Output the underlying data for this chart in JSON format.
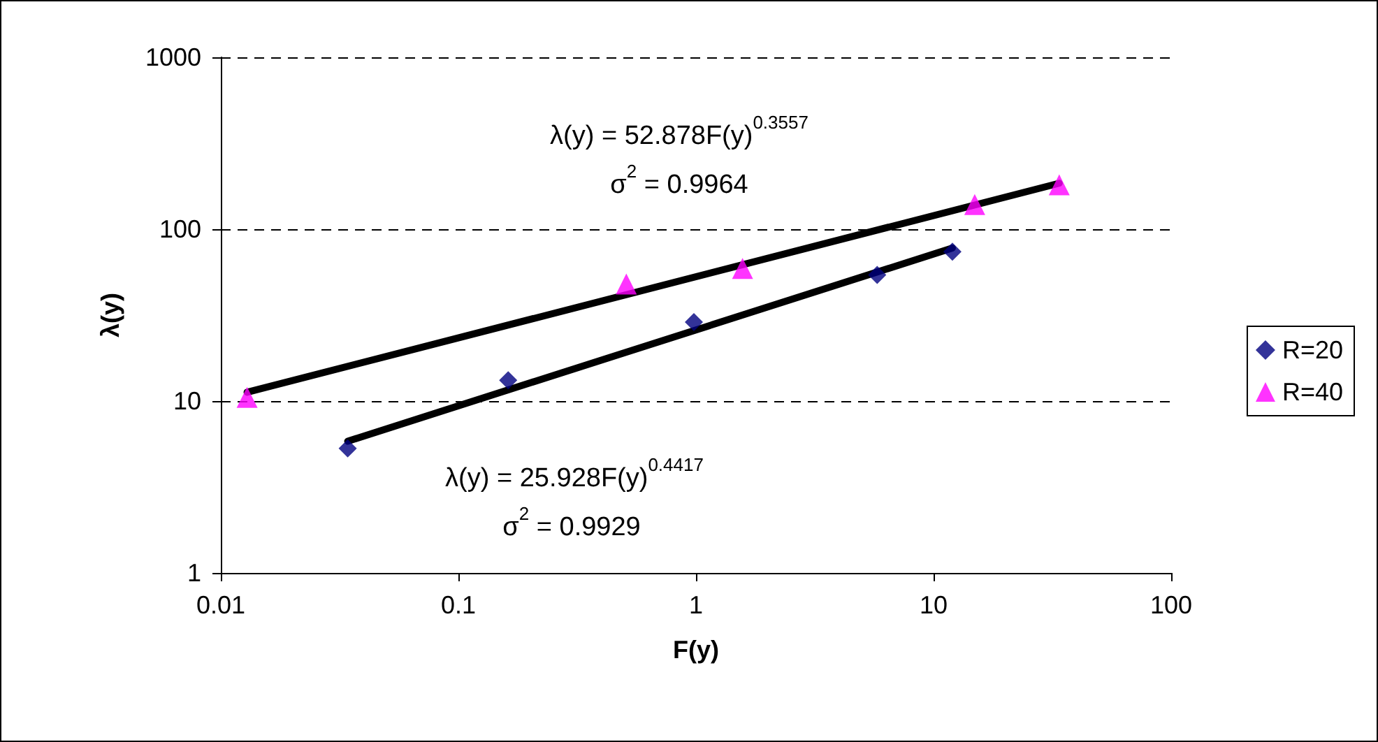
{
  "chart_data": {
    "type": "scatter",
    "xlabel": "F(y)",
    "ylabel": "λ(y)",
    "log": "xy",
    "xlim": [
      0.01,
      100
    ],
    "xticks": [
      0.01,
      0.1,
      1,
      10,
      100
    ],
    "ylim": [
      1,
      1000
    ],
    "yticks": [
      1,
      10,
      100,
      1000
    ],
    "grid": "y",
    "legend": "right",
    "series": [
      {
        "name": "R=20",
        "marker": "diamond",
        "color": "#000080",
        "x": [
          0.0342,
          0.162,
          0.98,
          5.79,
          12.0
        ],
        "values": [
          5.3,
          13.2,
          28.8,
          54.2,
          73.9
        ]
      },
      {
        "name": "R=40",
        "marker": "triangle",
        "color": "#ff00ff",
        "x": [
          0.0129,
          0.509,
          1.57,
          14.9,
          33.8
        ],
        "values": [
          10.5,
          48,
          59,
          139,
          181
        ]
      },
      {
        "type": "line",
        "marker": "none",
        "line_style": "solid",
        "color": "#000000",
        "x": [
          0.0129,
          33.8
        ],
        "values": [
          11.25,
          185
        ]
      },
      {
        "type": "line",
        "marker": "none",
        "line_style": "solid",
        "color": "#000000",
        "x": [
          0.0342,
          12.0
        ],
        "values": [
          5.84,
          77.7
        ]
      }
    ],
    "annotations": [
      "λ(y) = 52.878F(y)$^{0.3557}$",
      "σ$^{2}$ = 0.9964",
      "λ(y) = 25.928F(y)$^{0.4417}$",
      "σ$^{2}$ = 0.9929"
    ]
  }
}
